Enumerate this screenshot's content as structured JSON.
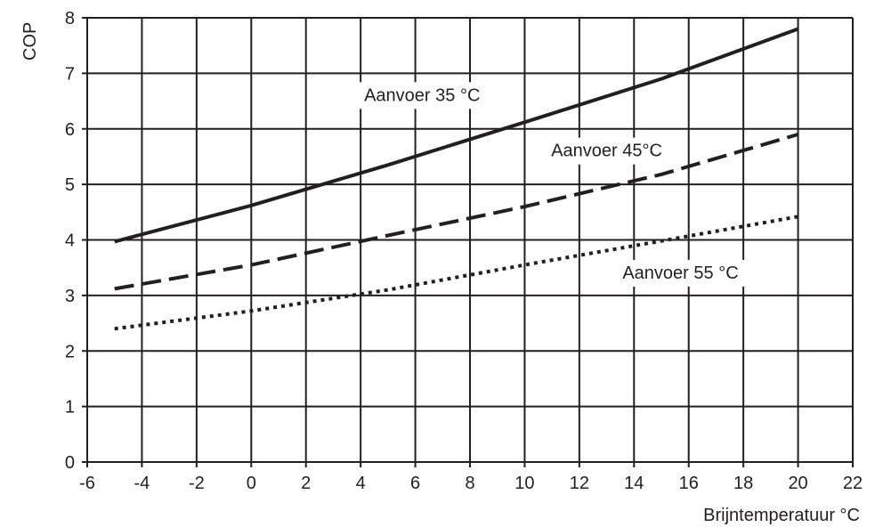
{
  "chart_data": {
    "type": "line",
    "xlabel": "Brijntemperatuur  °C",
    "ylabel": "COP",
    "xlim": [
      -6,
      22
    ],
    "ylim": [
      0,
      8
    ],
    "x_ticks": [
      -6,
      -4,
      -2,
      0,
      2,
      4,
      6,
      8,
      10,
      12,
      14,
      16,
      18,
      20,
      22
    ],
    "y_ticks": [
      0,
      1,
      2,
      3,
      4,
      5,
      6,
      7,
      8
    ],
    "grid": true,
    "colors": {
      "line": "#231f20",
      "grid": "#231f20",
      "background": "#ffffff"
    },
    "series": [
      {
        "name": "Aanvoer 35 °C",
        "style": "solid",
        "x": [
          -5,
          0,
          5,
          10,
          15,
          20
        ],
        "y": [
          3.97,
          4.62,
          5.35,
          6.12,
          6.9,
          7.8
        ]
      },
      {
        "name": "Aanvoer 45°C",
        "style": "dashed",
        "x": [
          -5,
          0,
          5,
          10,
          15,
          20
        ],
        "y": [
          3.12,
          3.55,
          4.08,
          4.6,
          5.18,
          5.9
        ]
      },
      {
        "name": "Aanvoer 55 °C",
        "style": "dotted",
        "x": [
          -5,
          0,
          5,
          10,
          15,
          20
        ],
        "y": [
          2.4,
          2.72,
          3.1,
          3.55,
          3.98,
          4.42
        ]
      }
    ]
  }
}
